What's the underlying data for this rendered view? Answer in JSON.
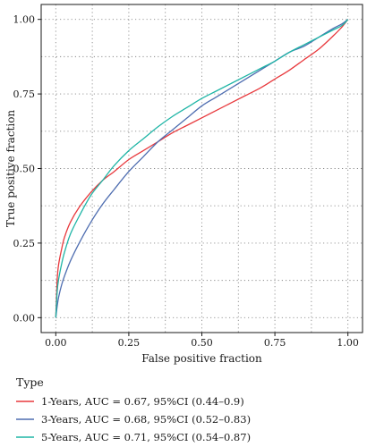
{
  "chart_data": {
    "type": "line",
    "xlabel": "False positive fraction",
    "ylabel": "True positive fraction",
    "xlim": [
      0,
      1
    ],
    "ylim": [
      0,
      1
    ],
    "x_ticks": [
      "0.00",
      "0.25",
      "0.50",
      "0.75",
      "1.00"
    ],
    "y_ticks": [
      "0.00",
      "0.25",
      "0.50",
      "0.75",
      "1.00"
    ],
    "grid": true,
    "legend": {
      "title": "Type",
      "placement": "bottom"
    },
    "series": [
      {
        "name": "1-Years, AUC = 0.67, 95%CI (0.44–0.9)",
        "color": "#e8393d",
        "x": [
          0,
          0.005,
          0.01,
          0.02,
          0.03,
          0.05,
          0.08,
          0.12,
          0.16,
          0.2,
          0.25,
          0.3,
          0.35,
          0.4,
          0.45,
          0.5,
          0.55,
          0.6,
          0.65,
          0.7,
          0.75,
          0.8,
          0.85,
          0.9,
          0.95,
          0.98,
          1.0
        ],
        "y": [
          0,
          0.13,
          0.18,
          0.23,
          0.27,
          0.32,
          0.37,
          0.42,
          0.46,
          0.49,
          0.53,
          0.56,
          0.59,
          0.62,
          0.645,
          0.67,
          0.695,
          0.72,
          0.745,
          0.77,
          0.8,
          0.83,
          0.865,
          0.9,
          0.945,
          0.975,
          1.0
        ]
      },
      {
        "name": "3-Years, AUC = 0.68, 95%CI (0.52–0.83)",
        "color": "#4e6db0",
        "x": [
          0,
          0.005,
          0.01,
          0.02,
          0.03,
          0.05,
          0.08,
          0.12,
          0.16,
          0.2,
          0.25,
          0.3,
          0.35,
          0.4,
          0.45,
          0.5,
          0.55,
          0.6,
          0.65,
          0.7,
          0.75,
          0.8,
          0.85,
          0.9,
          0.95,
          0.98,
          1.0
        ],
        "y": [
          0,
          0.04,
          0.07,
          0.11,
          0.14,
          0.19,
          0.25,
          0.32,
          0.38,
          0.43,
          0.49,
          0.54,
          0.59,
          0.63,
          0.67,
          0.71,
          0.74,
          0.77,
          0.8,
          0.83,
          0.86,
          0.89,
          0.91,
          0.94,
          0.97,
          0.985,
          1.0
        ]
      },
      {
        "name": "5-Years, AUC = 0.71, 95%CI (0.54–0.87)",
        "color": "#1fb5a6",
        "x": [
          0,
          0.005,
          0.01,
          0.02,
          0.03,
          0.05,
          0.08,
          0.12,
          0.16,
          0.2,
          0.25,
          0.3,
          0.35,
          0.4,
          0.45,
          0.5,
          0.55,
          0.6,
          0.65,
          0.7,
          0.75,
          0.8,
          0.85,
          0.9,
          0.95,
          0.98,
          1.0
        ],
        "y": [
          0,
          0.09,
          0.13,
          0.18,
          0.22,
          0.28,
          0.34,
          0.41,
          0.46,
          0.51,
          0.56,
          0.6,
          0.64,
          0.675,
          0.705,
          0.735,
          0.76,
          0.785,
          0.81,
          0.835,
          0.86,
          0.89,
          0.915,
          0.94,
          0.965,
          0.98,
          1.0
        ]
      }
    ]
  }
}
